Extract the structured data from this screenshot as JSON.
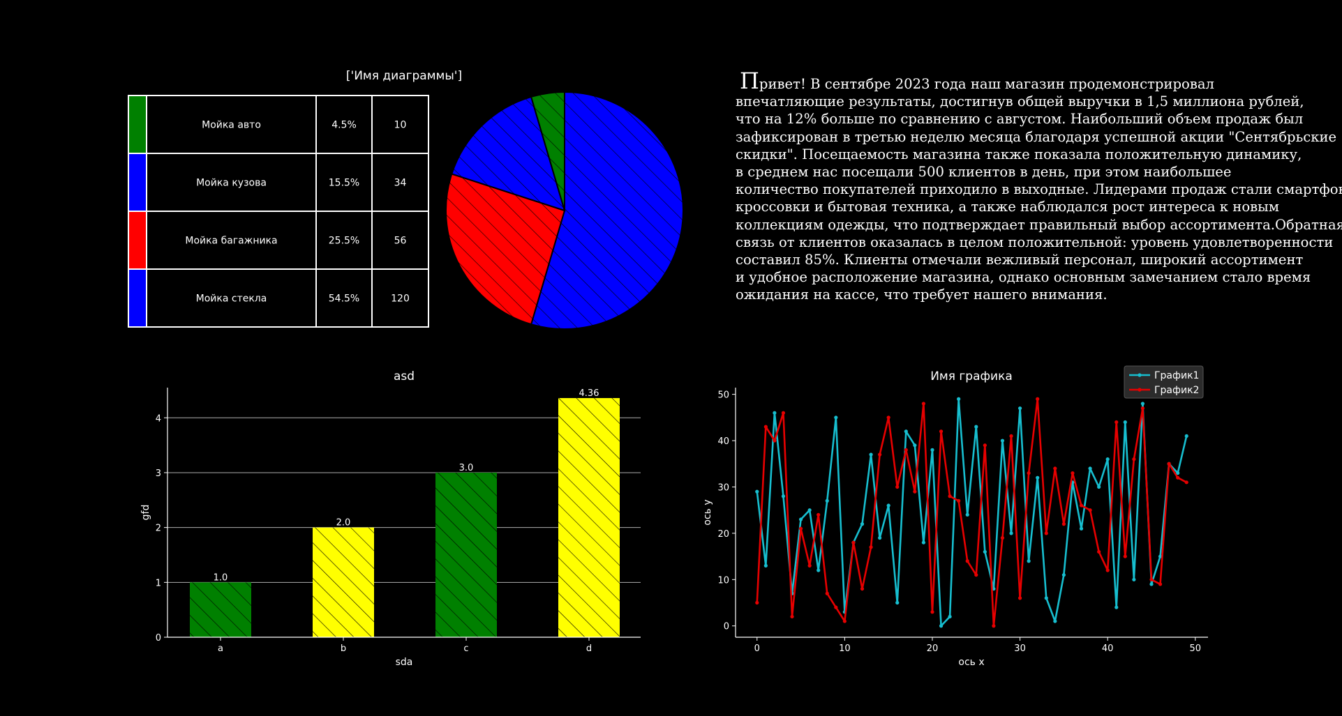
{
  "colors": {
    "background": "#000000",
    "green": "#008000",
    "blue": "#0000ff",
    "red": "#ff0000",
    "yellow": "#ffff00",
    "cyan": "#17becf",
    "line_red": "#e60000"
  },
  "text_block": {
    "dropcap": "П",
    "lines": [
      "ривет! В сентябре 2023 года наш магазин продемонстрировал",
      "впечатляющие результаты, достигнув общей выручки в 1,5 миллиона рублей,",
      "что на 12% больше по сравнению с августом. Наибольший объем продаж был",
      "зафиксирован в третью неделю месяца благодаря успешной акции \"Сентябрьские",
      "скидки\". Посещаемость магазина также показала положительную динамику,",
      "в среднем нас посещали 500 клиентов в день, при этом наибольшее",
      "количество покупателей приходило в выходные. Лидерами продаж стали смартфоны,",
      "кроссовки и бытовая техника, а также наблюдался рост интереса к новым",
      "коллекциям одежды, что подтверждает правильный выбор ассортимента.Обратная",
      "связь от клиентов оказалась в целом положительной: уровень удовлетворенности",
      "составил 85%. Клиенты отмечали вежливый персонал, широкий ассортимент",
      "и удобное расположение магазина, однако основным замечанием стало время",
      "ожидания на кассе, что требует нашего внимания."
    ]
  },
  "chart_data": [
    {
      "type": "pie",
      "title": "['Имя диаграммы']",
      "hatch": true,
      "start_angle_deg": 90,
      "counterclock": false,
      "slices": [
        {
          "label": "Мойка стекла",
          "percent": "54.5%",
          "value": 120,
          "color": "#0000ff"
        },
        {
          "label": "Мойка багажника",
          "percent": "25.5%",
          "value": 56,
          "color": "#ff0000"
        },
        {
          "label": "Мойка кузова",
          "percent": "15.5%",
          "value": 34,
          "color": "#0000ff"
        },
        {
          "label": "Мойка авто",
          "percent": "4.5%",
          "value": 10,
          "color": "#008000"
        }
      ],
      "table_rows": [
        {
          "color": "#008000",
          "label": "Мойка авто",
          "percent": "4.5%",
          "value": "10"
        },
        {
          "color": "#0000ff",
          "label": "Мойка кузова",
          "percent": "15.5%",
          "value": "34"
        },
        {
          "color": "#ff0000",
          "label": "Мойка багажника",
          "percent": "25.5%",
          "value": "56"
        },
        {
          "color": "#0000ff",
          "label": "Мойка стекла",
          "percent": "54.5%",
          "value": "120"
        }
      ]
    },
    {
      "type": "bar",
      "title": "asd",
      "xlabel": "sda",
      "ylabel": "gfd",
      "categories": [
        "a",
        "b",
        "c",
        "d"
      ],
      "values": [
        1.0,
        2.0,
        3.0,
        4.36
      ],
      "value_labels": [
        "1.0",
        "2.0",
        "3.0",
        "4.36"
      ],
      "colors": [
        "#008000",
        "#ffff00",
        "#008000",
        "#ffff00"
      ],
      "hatch": true,
      "ylim": [
        0,
        4.55
      ],
      "yticks": [
        0,
        1,
        2,
        3,
        4
      ],
      "grid_y": true
    },
    {
      "type": "line",
      "title": "Имя графика",
      "xlabel": "ось x",
      "ylabel": "ось y",
      "xlim": [
        -2.45,
        51.45
      ],
      "ylim": [
        -2.45,
        51.45
      ],
      "xticks": [
        0,
        10,
        20,
        30,
        40,
        50
      ],
      "yticks": [
        0,
        10,
        20,
        30,
        40,
        50
      ],
      "legend": "top-right",
      "x": [
        0,
        1,
        2,
        3,
        4,
        5,
        6,
        7,
        8,
        9,
        10,
        11,
        12,
        13,
        14,
        15,
        16,
        17,
        18,
        19,
        20,
        21,
        22,
        23,
        24,
        25,
        26,
        27,
        28,
        29,
        30,
        31,
        32,
        33,
        34,
        35,
        36,
        37,
        38,
        39,
        40,
        41,
        42,
        43,
        44,
        45,
        46,
        47,
        48,
        49
      ],
      "series": [
        {
          "name": "График1",
          "color": "#17becf",
          "values": [
            29,
            13,
            46,
            28,
            7,
            23,
            25,
            12,
            27,
            45,
            3,
            18,
            22,
            37,
            19,
            26,
            5,
            42,
            39,
            18,
            38,
            0,
            2,
            49,
            24,
            43,
            16,
            8,
            40,
            20,
            47,
            14,
            32,
            6,
            1,
            11,
            31,
            21,
            34,
            30,
            36,
            4,
            44,
            10,
            48,
            9,
            15,
            35,
            33,
            41
          ]
        },
        {
          "name": "График2",
          "color": "#e60000",
          "values": [
            5,
            43,
            40,
            46,
            2,
            21,
            13,
            24,
            7,
            4,
            1,
            18,
            8,
            17,
            37,
            45,
            30,
            38,
            29,
            48,
            3,
            42,
            28,
            27,
            14,
            11,
            39,
            0,
            19,
            41,
            6,
            33,
            49,
            20,
            34,
            22,
            33,
            26,
            25,
            16,
            12,
            44,
            15,
            36,
            47,
            10,
            9,
            35,
            32,
            31
          ]
        }
      ]
    }
  ]
}
